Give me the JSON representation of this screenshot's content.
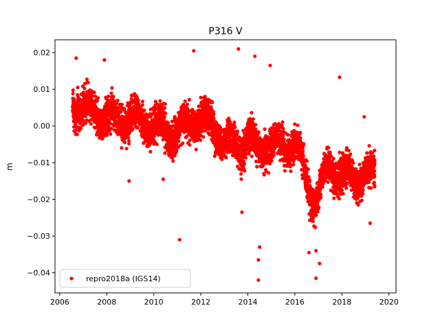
{
  "chart_data": {
    "type": "scatter",
    "title": "P316 V",
    "xlabel": "",
    "ylabel": "m",
    "xlim": [
      2005.8,
      2020.3
    ],
    "ylim": [
      -0.0455,
      0.0235
    ],
    "xticks": [
      2006,
      2008,
      2010,
      2012,
      2014,
      2016,
      2018,
      2020
    ],
    "xtick_labels": [
      "2006",
      "2008",
      "2010",
      "2012",
      "2014",
      "2016",
      "2018",
      "2020"
    ],
    "yticks": [
      -0.04,
      -0.03,
      -0.02,
      -0.01,
      0.0,
      0.01,
      0.02
    ],
    "ytick_labels": [
      "−0.04",
      "−0.03",
      "−0.02",
      "−0.01",
      "0.00",
      "0.01",
      "0.02"
    ],
    "grid": false,
    "legend_position": "lower left",
    "series": [
      {
        "name": "repro2018a (IGS14)",
        "color": "#ff0000",
        "marker": "circle",
        "x_start": 2006.55,
        "x_end": 2019.4,
        "trend_knots": [
          [
            2006.55,
            0.006
          ],
          [
            2007.0,
            0.005
          ],
          [
            2008.0,
            0.002
          ],
          [
            2009.0,
            0.002
          ],
          [
            2010.0,
            0.0
          ],
          [
            2011.0,
            -0.002
          ],
          [
            2011.5,
            0.001
          ],
          [
            2012.0,
            0.002
          ],
          [
            2012.5,
            0.0
          ],
          [
            2013.0,
            -0.004
          ],
          [
            2013.5,
            -0.006
          ],
          [
            2014.0,
            -0.003
          ],
          [
            2014.4,
            -0.007
          ],
          [
            2014.8,
            -0.004
          ],
          [
            2015.3,
            -0.006
          ],
          [
            2015.7,
            -0.005
          ],
          [
            2016.0,
            -0.004
          ],
          [
            2016.4,
            -0.013
          ],
          [
            2016.8,
            -0.02
          ],
          [
            2017.0,
            -0.018
          ],
          [
            2017.5,
            -0.011
          ],
          [
            2018.0,
            -0.013
          ],
          [
            2018.5,
            -0.015
          ],
          [
            2019.0,
            -0.012
          ],
          [
            2019.4,
            -0.014
          ]
        ],
        "scatter_sigma": 0.0045,
        "highlighted_points": [
          [
            2006.7,
            0.0185
          ],
          [
            2007.9,
            0.018
          ],
          [
            2011.1,
            -0.031
          ],
          [
            2011.7,
            0.0205
          ],
          [
            2013.6,
            0.021
          ],
          [
            2013.75,
            -0.0235
          ],
          [
            2014.3,
            0.019
          ],
          [
            2014.45,
            -0.042
          ],
          [
            2014.45,
            -0.0365
          ],
          [
            2014.5,
            -0.033
          ],
          [
            2014.95,
            0.0165
          ],
          [
            2016.9,
            -0.0415
          ],
          [
            2017.05,
            -0.0375
          ],
          [
            2017.9,
            0.0133
          ],
          [
            2018.95,
            0.0025
          ],
          [
            2019.2,
            -0.0265
          ],
          [
            2008.95,
            -0.015
          ],
          [
            2010.4,
            -0.0145
          ],
          [
            2016.6,
            -0.0345
          ],
          [
            2016.9,
            -0.034
          ]
        ]
      }
    ]
  }
}
